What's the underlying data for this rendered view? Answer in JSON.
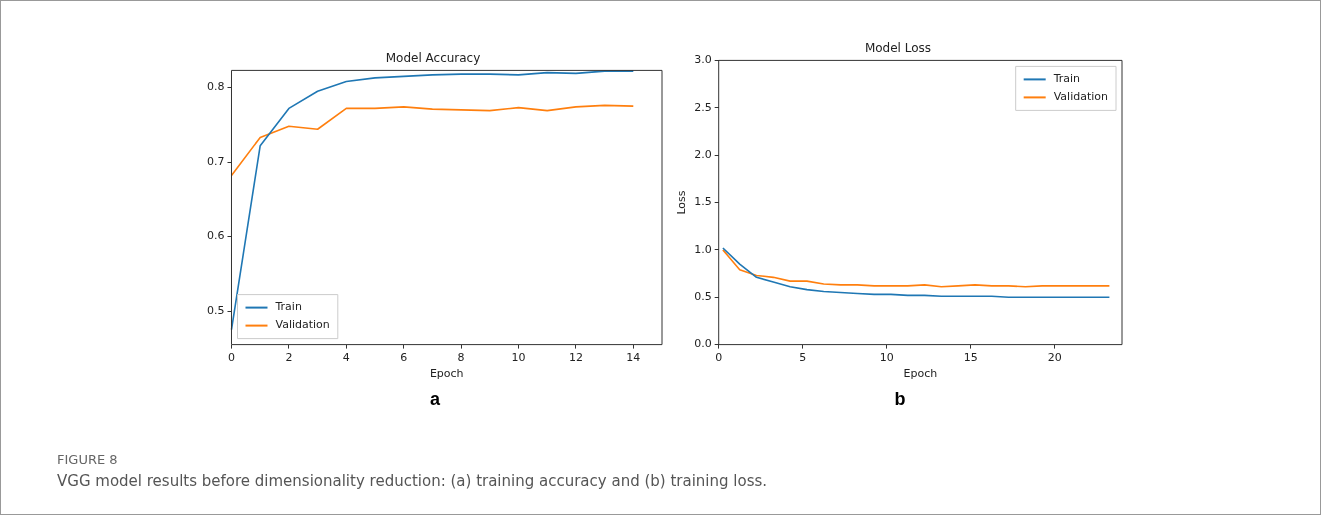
{
  "chart_data": [
    {
      "type": "line",
      "title": "Model Accuracy",
      "xlabel": "Epoch",
      "annotations": [
        "a",
        "FIGURE 8",
        "VGG model results before dimensionality reduction: (a) training accuracy and (b) training loss."
      ],
      "x": [
        0,
        1,
        2,
        3,
        4,
        5,
        6,
        7,
        8,
        9,
        10,
        11,
        12,
        13,
        14
      ],
      "series": [
        {
          "name": "Train",
          "color": "#1f77b4",
          "values": [
            0.475,
            0.722,
            0.772,
            0.795,
            0.808,
            0.813,
            0.815,
            0.817,
            0.818,
            0.818,
            0.817,
            0.82,
            0.819,
            0.822,
            0.822
          ]
        },
        {
          "name": "Validation",
          "color": "#ff7f0e",
          "values": [
            0.682,
            0.733,
            0.748,
            0.744,
            0.772,
            0.772,
            0.774,
            0.771,
            0.77,
            0.769,
            0.773,
            0.769,
            0.774,
            0.776,
            0.775
          ]
        }
      ],
      "xlim": [
        0,
        15
      ],
      "xticks": [
        0,
        2,
        4,
        6,
        8,
        10,
        12,
        14
      ],
      "ylim": [
        0.455,
        0.823
      ],
      "yticks": [
        0.5,
        0.6,
        0.7,
        0.8
      ],
      "grid": false,
      "legend": "bottom left",
      "marker": "none",
      "line_style": "solid"
    },
    {
      "type": "line",
      "title": "Model Loss",
      "xlabel": "Epoch",
      "ylabel": "Loss",
      "annotations": [
        "b"
      ],
      "x": [
        0.25,
        1.25,
        2.25,
        3.25,
        4.25,
        5.25,
        6.25,
        7.25,
        8.25,
        9.25,
        10.25,
        11.25,
        12.25,
        13.25,
        14.25,
        15.25,
        16.25,
        17.25,
        18.25,
        19.25,
        20.25,
        21.25,
        22.25,
        23.25
      ],
      "series": [
        {
          "name": "Train",
          "color": "#1f77b4",
          "values": [
            1.02,
            0.85,
            0.71,
            0.66,
            0.61,
            0.58,
            0.56,
            0.55,
            0.54,
            0.53,
            0.53,
            0.52,
            0.52,
            0.51,
            0.51,
            0.51,
            0.51,
            0.5,
            0.5,
            0.5,
            0.5,
            0.5,
            0.5,
            0.5
          ]
        },
        {
          "name": "Validation",
          "color": "#ff7f0e",
          "values": [
            1.0,
            0.79,
            0.73,
            0.71,
            0.67,
            0.67,
            0.64,
            0.63,
            0.63,
            0.62,
            0.62,
            0.62,
            0.63,
            0.61,
            0.62,
            0.63,
            0.62,
            0.62,
            0.61,
            0.62,
            0.62,
            0.62,
            0.62,
            0.62
          ]
        }
      ],
      "xlim": [
        0,
        24
      ],
      "xticks": [
        0,
        5,
        10,
        15,
        20
      ],
      "ylim": [
        0,
        3
      ],
      "yticks": [
        {
          "value": 0,
          "label": "0.0"
        },
        0.5,
        {
          "value": 1,
          "label": "1.0"
        },
        1.5,
        {
          "value": 2,
          "label": "2.0"
        },
        2.5,
        {
          "value": 3,
          "label": "3.0"
        }
      ],
      "grid": false,
      "legend": "top right",
      "marker": "none",
      "line_style": "solid"
    }
  ]
}
